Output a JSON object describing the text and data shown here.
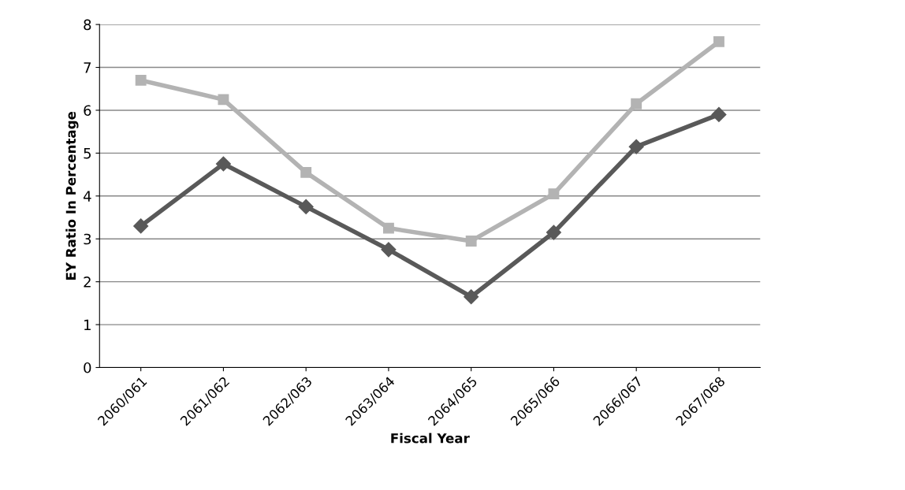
{
  "chart_data": {
    "type": "line",
    "xlabel": "Fiscal Year",
    "ylabel": "EY Ratio In Percentage",
    "categories": [
      "2060/061",
      "2061/062",
      "2062/063",
      "2063/064",
      "2064/065",
      "2065/066",
      "2066/067",
      "2067/068"
    ],
    "series": [
      {
        "color": "#595959",
        "marker": "diamond",
        "values": [
          3.3,
          4.75,
          3.75,
          2.75,
          1.65,
          3.15,
          5.15,
          5.9
        ]
      },
      {
        "color": "#b3b3b3",
        "marker": "square",
        "values": [
          6.7,
          6.25,
          4.55,
          3.25,
          2.95,
          4.05,
          6.15,
          7.6
        ]
      }
    ],
    "ylim": [
      0,
      8
    ],
    "yticks": [
      0,
      1,
      2,
      3,
      4,
      5,
      6,
      7,
      8
    ],
    "grid": "y",
    "line_style": "solid"
  }
}
